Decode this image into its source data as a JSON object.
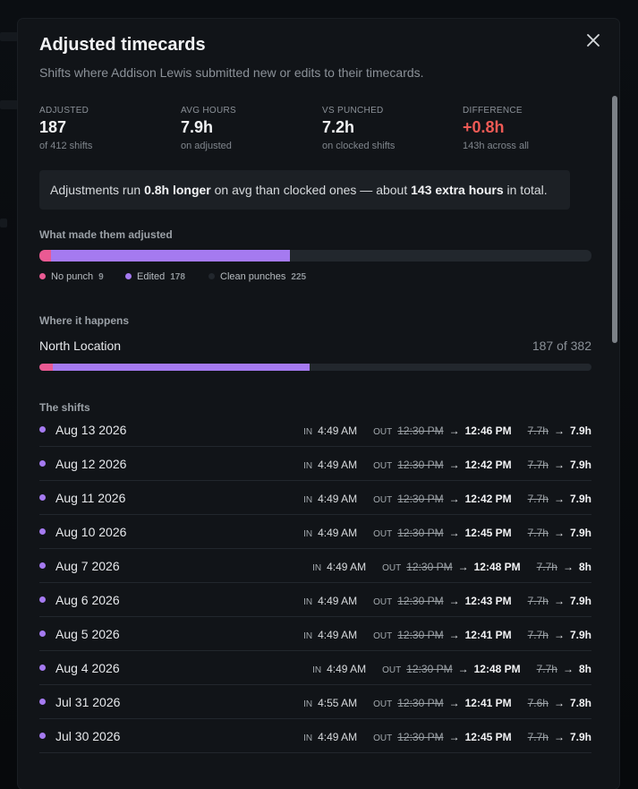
{
  "modal": {
    "title": "Adjusted timecards",
    "subtitle": "Shifts where Addison Lewis submitted new or edits to their timecards."
  },
  "stats": [
    {
      "label": "ADJUSTED",
      "value": "187",
      "sub": "of 412 shifts"
    },
    {
      "label": "AVG HOURS",
      "value": "7.9h",
      "sub": "on adjusted"
    },
    {
      "label": "VS PUNCHED",
      "value": "7.2h",
      "sub": "on clocked shifts"
    },
    {
      "label": "DIFFERENCE",
      "value": "+0.8h",
      "sub": "143h across all"
    }
  ],
  "callout": {
    "prefix": "Adjustments run ",
    "bold1": "0.8h longer",
    "middle": " on avg than clocked ones — about ",
    "bold2": "143 extra hours",
    "suffix": " in total."
  },
  "causes": {
    "title": "What made them adjusted",
    "total": 412,
    "items": [
      {
        "label": "No punch",
        "count": 9,
        "color": "#ea5a93"
      },
      {
        "label": "Edited",
        "count": 178,
        "color": "#a57af0"
      },
      {
        "label": "Clean punches",
        "count": 225,
        "color": "#22272d"
      }
    ]
  },
  "location": {
    "title": "Where it happens",
    "name": "North Location",
    "count_text": "187 of 382",
    "total": 382,
    "no_punch": 9,
    "edited": 178
  },
  "shifts": {
    "title": "The shifts",
    "in_label": "IN",
    "out_label": "OUT",
    "rows": [
      {
        "date": "Aug 13 2026",
        "in": "4:49 AM",
        "out_old": "12:30 PM",
        "out_new": "12:46 PM",
        "hours_old": "7.7h",
        "hours_new": "7.9h"
      },
      {
        "date": "Aug 12 2026",
        "in": "4:49 AM",
        "out_old": "12:30 PM",
        "out_new": "12:42 PM",
        "hours_old": "7.7h",
        "hours_new": "7.9h"
      },
      {
        "date": "Aug 11 2026",
        "in": "4:49 AM",
        "out_old": "12:30 PM",
        "out_new": "12:42 PM",
        "hours_old": "7.7h",
        "hours_new": "7.9h"
      },
      {
        "date": "Aug 10 2026",
        "in": "4:49 AM",
        "out_old": "12:30 PM",
        "out_new": "12:45 PM",
        "hours_old": "7.7h",
        "hours_new": "7.9h"
      },
      {
        "date": "Aug 7 2026",
        "in": "4:49 AM",
        "out_old": "12:30 PM",
        "out_new": "12:48 PM",
        "hours_old": "7.7h",
        "hours_new": "8h"
      },
      {
        "date": "Aug 6 2026",
        "in": "4:49 AM",
        "out_old": "12:30 PM",
        "out_new": "12:43 PM",
        "hours_old": "7.7h",
        "hours_new": "7.9h"
      },
      {
        "date": "Aug 5 2026",
        "in": "4:49 AM",
        "out_old": "12:30 PM",
        "out_new": "12:41 PM",
        "hours_old": "7.7h",
        "hours_new": "7.9h"
      },
      {
        "date": "Aug 4 2026",
        "in": "4:49 AM",
        "out_old": "12:30 PM",
        "out_new": "12:48 PM",
        "hours_old": "7.7h",
        "hours_new": "8h"
      },
      {
        "date": "Jul 31 2026",
        "in": "4:55 AM",
        "out_old": "12:30 PM",
        "out_new": "12:41 PM",
        "hours_old": "7.6h",
        "hours_new": "7.8h"
      },
      {
        "date": "Jul 30 2026",
        "in": "4:49 AM",
        "out_old": "12:30 PM",
        "out_new": "12:45 PM",
        "hours_old": "7.7h",
        "hours_new": "7.9h"
      }
    ]
  },
  "icons": {
    "close": "close-icon"
  },
  "colors": {
    "no_punch": "#ea5a93",
    "edited": "#a57af0",
    "difference": "#ef5a55"
  }
}
